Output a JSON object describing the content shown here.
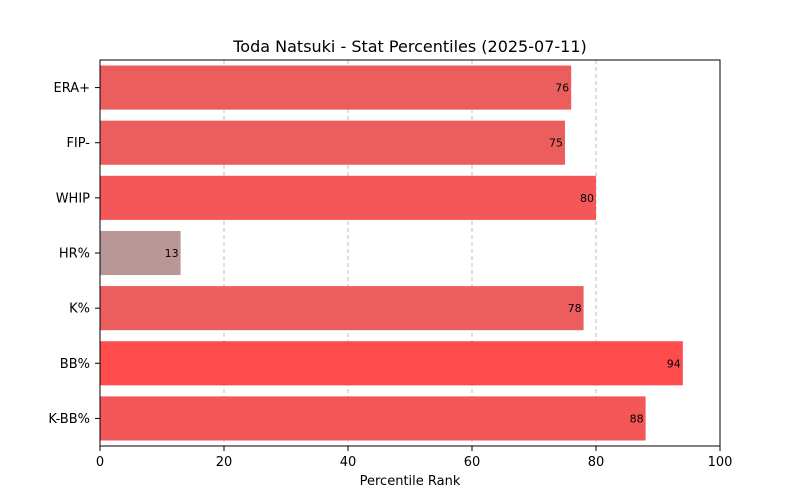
{
  "chart_data": {
    "type": "bar",
    "orientation": "horizontal",
    "title": "Toda Natsuki - Stat Percentiles (2025-07-11)",
    "xlabel": "Percentile Rank",
    "ylabel": "",
    "xlim": [
      0,
      100
    ],
    "xticks": [
      0,
      20,
      40,
      60,
      80,
      100
    ],
    "grid": "x-axis dashed",
    "categories": [
      "ERA+",
      "FIP-",
      "WHIP",
      "HR%",
      "K%",
      "BB%",
      "K-BB%"
    ],
    "values": [
      76,
      75,
      80,
      13,
      78,
      94,
      88
    ],
    "bar_colors": [
      "#ec5e5e",
      "#ec5e5e",
      "#f45757",
      "#b99796",
      "#ec5e5e",
      "#ff4b4b",
      "#f45757"
    ],
    "data_labels": [
      "76",
      "75",
      "80",
      "13",
      "78",
      "94",
      "88"
    ]
  }
}
